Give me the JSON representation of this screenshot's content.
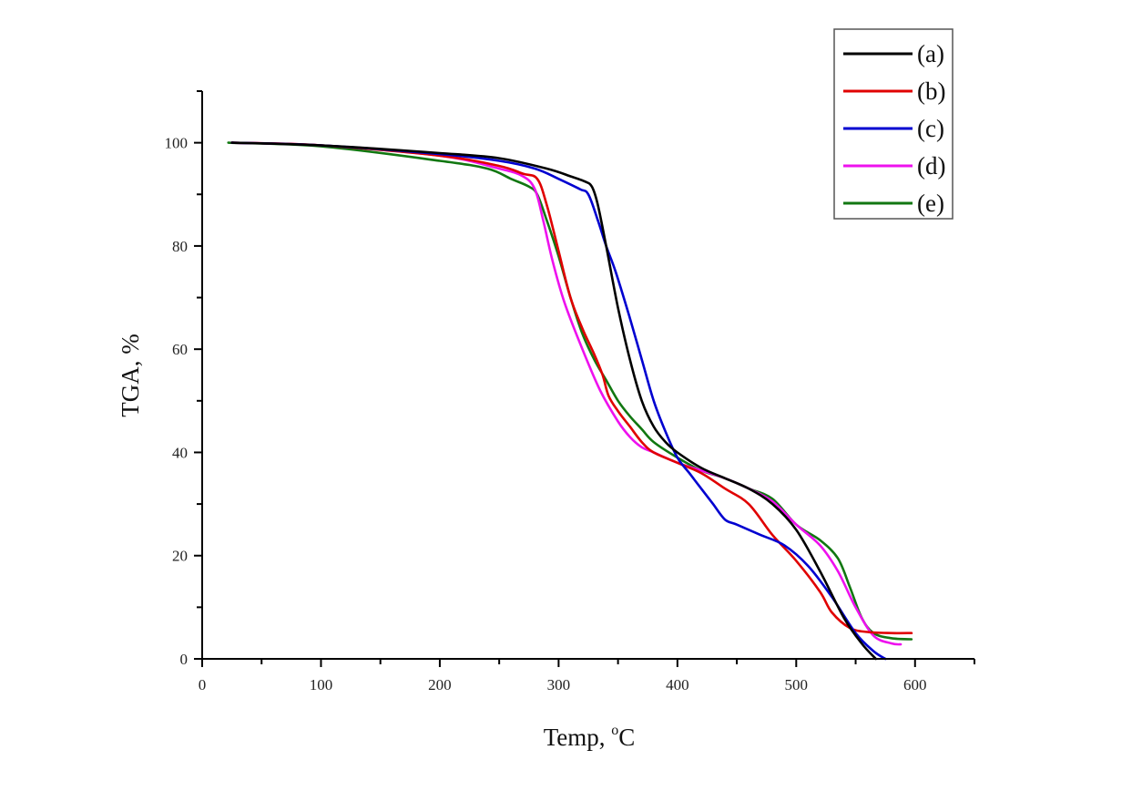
{
  "chart_data": {
    "type": "line",
    "title": "",
    "xlabel": "Temp, °C",
    "xlabel_main": "Temp, ",
    "xlabel_sup": "o",
    "xlabel_unit": "C",
    "ylabel": "TGA, %",
    "xlim": [
      0,
      650
    ],
    "ylim": [
      0,
      110
    ],
    "xticks": [
      0,
      100,
      200,
      300,
      400,
      500,
      600
    ],
    "xticks_minor": [
      50,
      150,
      250,
      350,
      450,
      550,
      650
    ],
    "yticks": [
      0,
      20,
      40,
      60,
      80,
      100
    ],
    "yticks_minor": [
      10,
      30,
      50,
      70,
      90,
      110
    ],
    "grid": false,
    "legend_position": "top-right",
    "series": [
      {
        "name": "(a)",
        "color": "#000000",
        "x": [
          25,
          100,
          200,
          250,
          290,
          310,
          322,
          328,
          333,
          340,
          350,
          360,
          370,
          380,
          390,
          400,
          420,
          440,
          460,
          480,
          500,
          520,
          540,
          555,
          567
        ],
        "y": [
          100,
          99.5,
          98,
          97,
          95,
          93.5,
          92.5,
          91.5,
          88,
          80,
          68,
          58,
          50,
          45,
          42,
          40,
          37,
          35,
          33,
          30,
          25,
          17,
          8,
          3,
          0
        ]
      },
      {
        "name": "(b)",
        "color": "#e00000",
        "x": [
          25,
          100,
          200,
          250,
          270,
          282,
          290,
          300,
          310,
          320,
          330,
          337,
          342,
          350,
          360,
          370,
          380,
          400,
          420,
          440,
          460,
          480,
          500,
          520,
          530,
          545,
          560,
          580,
          597
        ],
        "y": [
          100,
          99.5,
          97.5,
          95.5,
          94,
          93,
          88,
          79,
          70,
          64,
          59,
          55,
          51,
          48,
          45,
          42,
          40,
          38,
          36,
          33,
          30,
          24,
          19,
          13,
          9,
          6,
          5.2,
          5.0,
          5.0
        ]
      },
      {
        "name": "(c)",
        "color": "#0000d0",
        "x": [
          25,
          100,
          200,
          250,
          280,
          300,
          318,
          325,
          333,
          340,
          348,
          360,
          370,
          380,
          390,
          400,
          410,
          420,
          430,
          440,
          450,
          470,
          490,
          510,
          530,
          550,
          565,
          575
        ],
        "y": [
          100,
          99.5,
          97.8,
          96.5,
          95,
          93,
          91,
          90,
          85,
          80,
          75,
          66,
          58,
          50,
          44,
          39,
          36,
          33,
          30,
          27,
          26,
          24,
          22,
          18,
          12,
          5,
          1.5,
          0
        ]
      },
      {
        "name": "(d)",
        "color": "#ee11ee",
        "x": [
          25,
          100,
          200,
          250,
          270,
          280,
          287,
          295,
          305,
          320,
          335,
          350,
          360,
          370,
          380,
          400,
          420,
          440,
          460,
          480,
          500,
          520,
          535,
          550,
          565,
          580,
          588
        ],
        "y": [
          100,
          99.5,
          97.5,
          95,
          93.5,
          91,
          85,
          77,
          69,
          60,
          52,
          46,
          43,
          41,
          40,
          38,
          36.5,
          35,
          33,
          30.5,
          26,
          22,
          17,
          10,
          4.5,
          3,
          2.8
        ]
      },
      {
        "name": "(e)",
        "color": "#117711",
        "x": [
          22,
          100,
          200,
          240,
          260,
          275,
          282,
          290,
          300,
          310,
          320,
          330,
          340,
          350,
          360,
          370,
          380,
          400,
          420,
          440,
          460,
          480,
          500,
          520,
          535,
          545,
          555,
          565,
          580,
          597
        ],
        "y": [
          100,
          99.3,
          96.5,
          95,
          93,
          91.5,
          90,
          85,
          78,
          70,
          63,
          58,
          54,
          50,
          47,
          44.5,
          42,
          39,
          36.5,
          35,
          33,
          31,
          26,
          23,
          19.5,
          14,
          8,
          5,
          4,
          3.8
        ]
      }
    ]
  }
}
